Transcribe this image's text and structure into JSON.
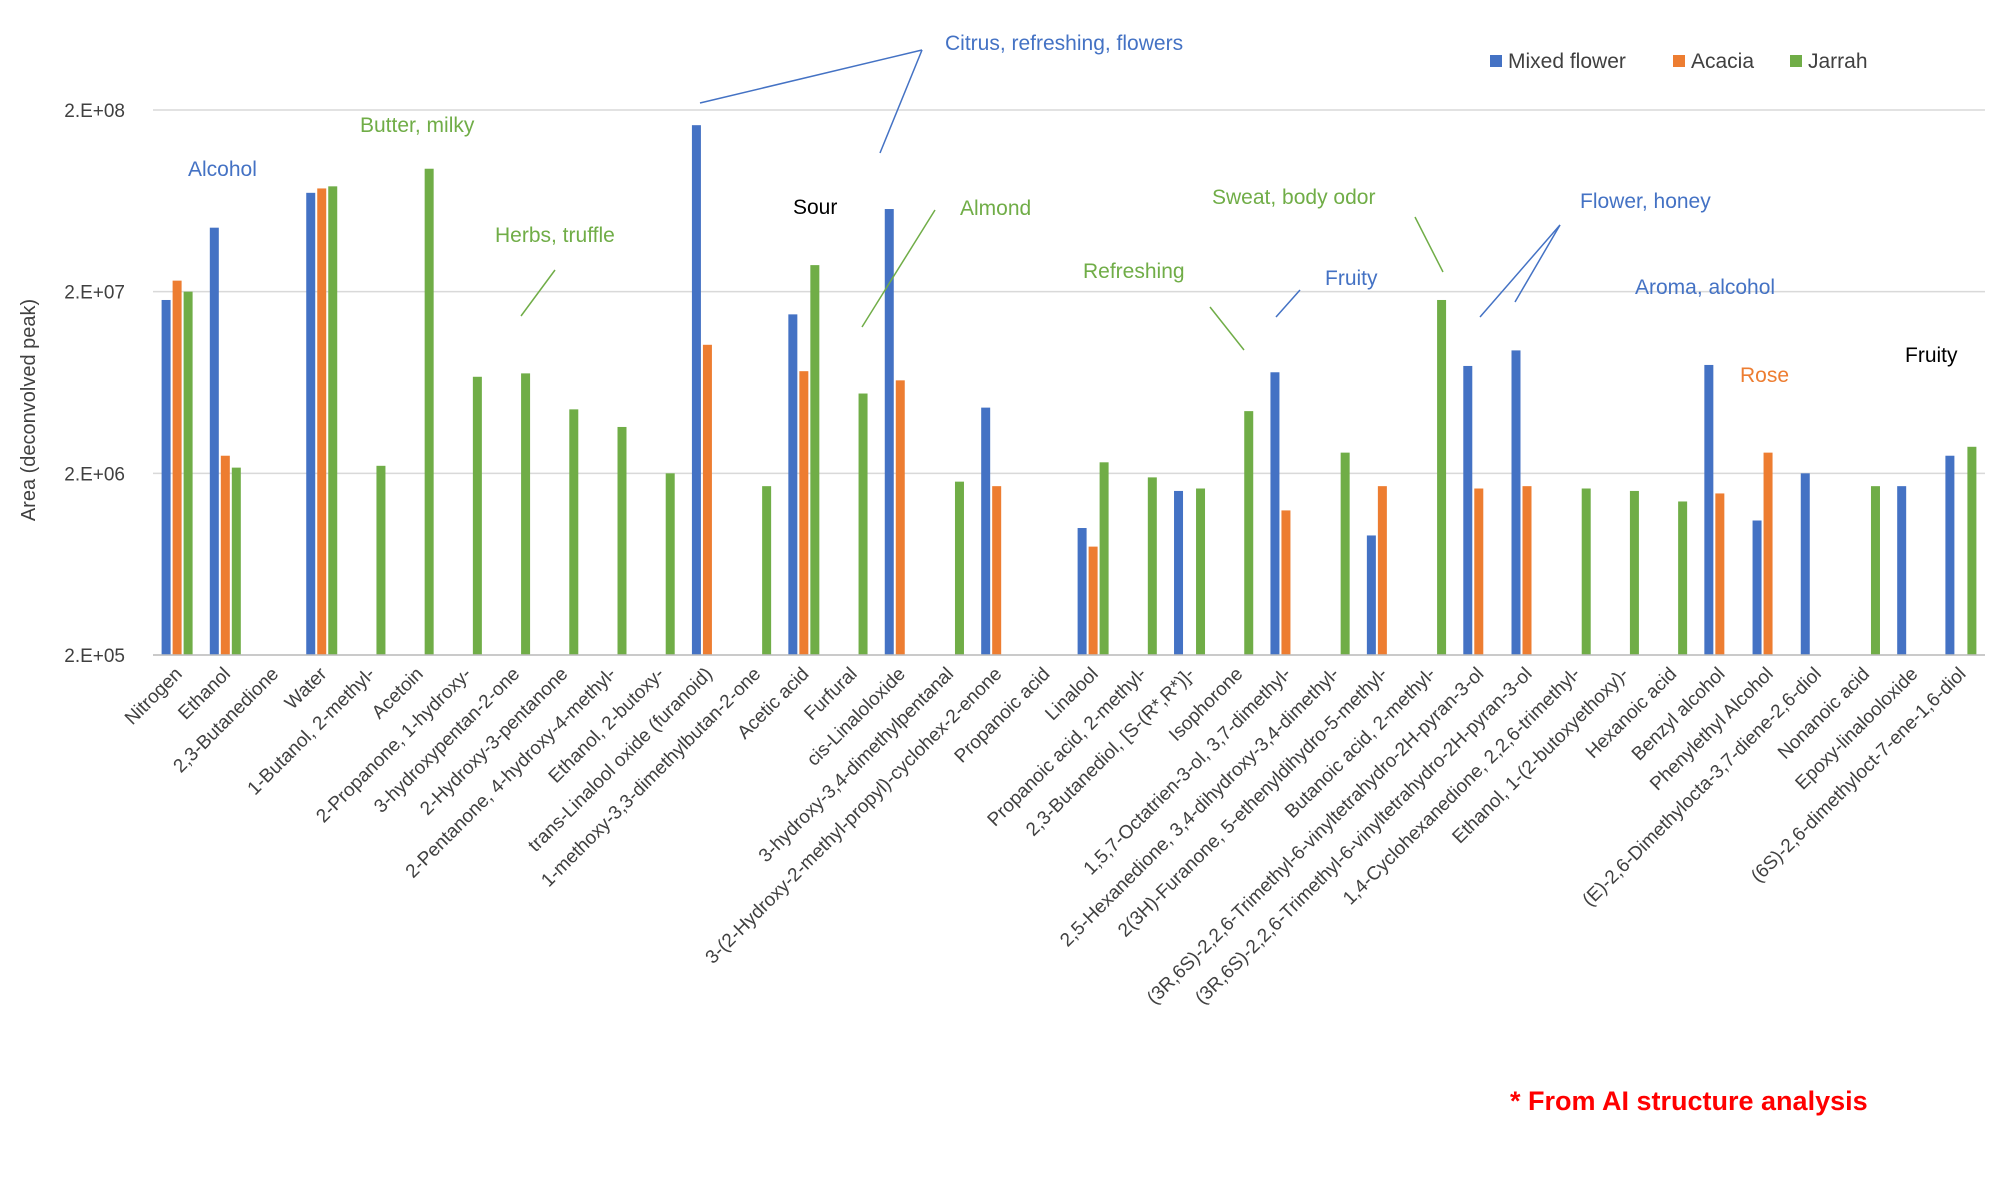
{
  "chart_data": {
    "type": "bar",
    "ylabel": "Area (deconvolved peak)",
    "yscale": "log",
    "ylim": [
      200000,
      200000000
    ],
    "yticks": [
      {
        "value": 200000,
        "label": "2.E+05"
      },
      {
        "value": 2000000,
        "label": "2.E+06"
      },
      {
        "value": 20000000,
        "label": "2.E+07"
      },
      {
        "value": 200000000,
        "label": "2.E+08"
      }
    ],
    "categories": [
      "Nitrogen",
      "Ethanol",
      "2,3-Butanedione",
      "Water",
      "1-Butanol, 2-methyl-",
      "Acetoin",
      "2-Propanone, 1-hydroxy-",
      "3-hydroxypentan-2-one",
      "2-Hydroxy-3-pentanone",
      "2-Pentanone, 4-hydroxy-4-methyl-",
      "Ethanol, 2-butoxy-",
      "trans-Linalool oxide (furanoid)",
      "1-methoxy-3,3-dimethylbutan-2-one",
      "Acetic acid",
      "Furfural",
      "cis-Linaloloxide",
      "3-hydroxy-3,4-dimethylpentanal",
      "3-(2-Hydroxy-2-methyl-propyl)-cyclohex-2-enone",
      "Propanoic acid",
      "Linalool",
      "Propanoic acid, 2-methyl-",
      "2,3-Butanediol, [S-(R*,R*)]-",
      "Isophorone",
      "1,5,7-Octatrien-3-ol, 3,7-dimethyl-",
      "2,5-Hexanedione, 3,4-dihydroxy-3,4-dimethyl-",
      "2(3H)-Furanone, 5-ethenyldihydro-5-methyl-",
      "Butanoic acid, 2-methyl-",
      "(3R,6S)-2,2,6-Trimethyl-6-vinyltetrahydro-2H-pyran-3-ol",
      "(3R,6S)-2,2,6-Trimethyl-6-vinyltetrahydro-2H-pyran-3-ol",
      "1,4-Cyclohexanedione, 2,2,6-trimethyl-",
      "Ethanol, 1-(2-butoxyethoxy)-",
      "Hexanoic acid",
      "Benzyl alcohol",
      "Phenylethyl Alcohol",
      "(E)-2,6-Dimethylocta-3,7-diene-2,6-diol",
      "Nonanoic acid",
      "Epoxy-linalooloxide",
      "(6S)-2,6-dimethyloct-7-ene-1,6-diol"
    ],
    "series": [
      {
        "name": "Mixed flower",
        "color": "#4472c4",
        "values": [
          18000000,
          45000000,
          null,
          70000000,
          null,
          null,
          null,
          null,
          null,
          null,
          null,
          165000000,
          null,
          15000000,
          null,
          57000000,
          null,
          4600000,
          null,
          1000000,
          null,
          1600000,
          null,
          7200000,
          null,
          910000,
          null,
          7800000,
          9500000,
          null,
          null,
          null,
          7900000,
          1100000,
          2000000,
          null,
          1700000,
          2500000
        ]
      },
      {
        "name": "Acacia",
        "color": "#ed7d31",
        "values": [
          23000000,
          2500000,
          null,
          74000000,
          null,
          null,
          null,
          null,
          null,
          null,
          null,
          10200000,
          null,
          7300000,
          null,
          6500000,
          null,
          1700000,
          null,
          790000,
          null,
          null,
          null,
          1250000,
          null,
          1700000,
          null,
          1650000,
          1700000,
          null,
          null,
          null,
          1550000,
          2600000,
          null,
          null,
          null,
          null
        ]
      },
      {
        "name": "Jarrah",
        "color": "#70ad47",
        "values": [
          20000000,
          2150000,
          null,
          76000000,
          2200000,
          95000000,
          null,
          null,
          null,
          null,
          null,
          null,
          null,
          28000000,
          null,
          null,
          null,
          null,
          null,
          2300000,
          null,
          null,
          null,
          null,
          null,
          null,
          null,
          null,
          null,
          null,
          null,
          null,
          null,
          null,
          null,
          null,
          null,
          null
        ]
      }
    ],
    "extra_jarrah": [
      {
        "index": 6,
        "value": 6800000
      },
      {
        "index": 7,
        "value": 7100000
      },
      {
        "index": 8,
        "value": 4500000
      },
      {
        "index": 9,
        "value": 3600000
      },
      {
        "index": 10,
        "value": 2000000
      },
      {
        "index": 12,
        "value": 1700000
      },
      {
        "index": 14,
        "value": 5500000
      },
      {
        "index": 16,
        "value": 1800000
      },
      {
        "index": 20,
        "value": 1900000
      },
      {
        "index": 21,
        "value": 1650000
      },
      {
        "index": 22,
        "value": 4400000
      },
      {
        "index": 24,
        "value": 2600000
      },
      {
        "index": 26,
        "value": 18000000
      },
      {
        "index": 29,
        "value": 1650000
      },
      {
        "index": 30,
        "value": 1600000
      },
      {
        "index": 31,
        "value": 1400000
      },
      {
        "index": 35,
        "value": 1700000
      },
      {
        "index": 37,
        "value": 2800000
      }
    ],
    "legend": [
      "Mixed flower",
      "Acacia",
      "Jarrah"
    ],
    "annotations": [
      {
        "text": "Alcohol",
        "color": "#4472c4"
      },
      {
        "text": "Butter, milky",
        "color": "#70ad47"
      },
      {
        "text": "Herbs, truffle",
        "color": "#70ad47"
      },
      {
        "text": "Citrus, refreshing, flowers",
        "color": "#4472c4"
      },
      {
        "text": "Sour",
        "color": "#000000"
      },
      {
        "text": "Almond",
        "color": "#70ad47"
      },
      {
        "text": "Sweat, body odor",
        "color": "#70ad47"
      },
      {
        "text": "Flower, honey",
        "color": "#4472c4"
      },
      {
        "text": "Refreshing",
        "color": "#70ad47"
      },
      {
        "text": "Fruity",
        "color": "#4472c4"
      },
      {
        "text": "Aroma, alcohol",
        "color": "#4472c4"
      },
      {
        "text": "Rose",
        "color": "#ed7d31"
      },
      {
        "text": "Fruity",
        "color": "#000000"
      }
    ],
    "note": "* From AI structure analysis"
  }
}
